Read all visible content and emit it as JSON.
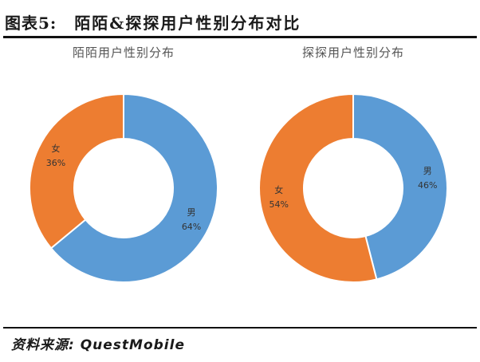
{
  "figure": {
    "label": "图表5:",
    "title": "陌陌&探探用户性别分布对比",
    "source": "资料来源: QuestMobile"
  },
  "colors": {
    "male": "#5b9bd5",
    "female": "#ed7d31"
  },
  "chart_data": [
    {
      "type": "pie",
      "donut": true,
      "title": "陌陌用户性别分布",
      "slices": [
        {
          "label": "男",
          "value": 64,
          "value_text": "64%",
          "color": "#5b9bd5"
        },
        {
          "label": "女",
          "value": 36,
          "value_text": "36%",
          "color": "#ed7d31"
        }
      ]
    },
    {
      "type": "pie",
      "donut": true,
      "title": "探探用户性别分布",
      "slices": [
        {
          "label": "男",
          "value": 46,
          "value_text": "46%",
          "color": "#5b9bd5"
        },
        {
          "label": "女",
          "value": 54,
          "value_text": "54%",
          "color": "#ed7d31"
        }
      ]
    }
  ]
}
